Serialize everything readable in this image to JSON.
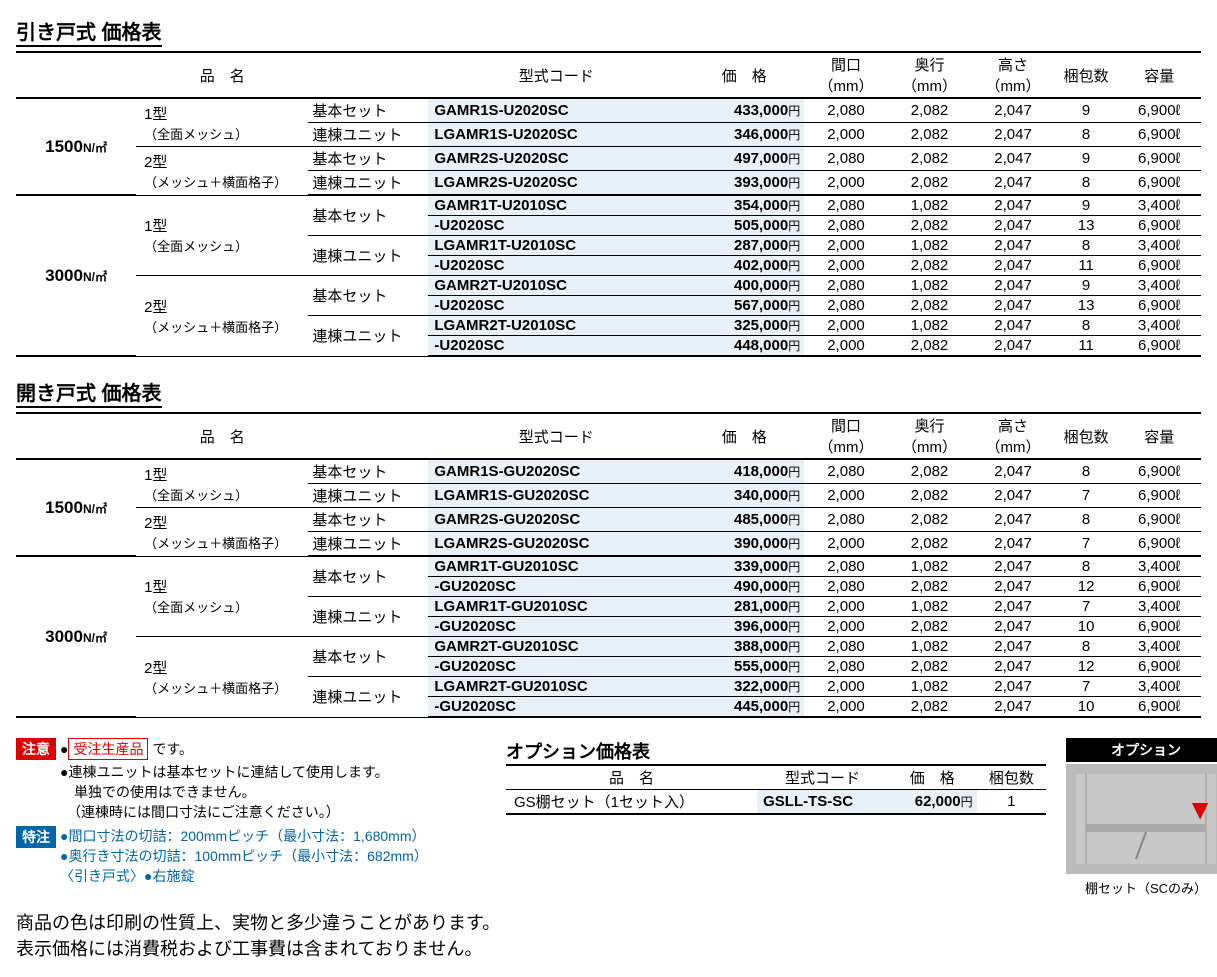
{
  "tables": [
    {
      "title": "引き戸式 価格表",
      "headers": [
        "品　名",
        "型式コード",
        "価　格",
        "間口（mm）",
        "奥行（mm）",
        "高さ（mm）",
        "梱包数",
        "容量"
      ],
      "rows": [
        {
          "load": "1500",
          "load_unit": "N/㎡",
          "type": "1型",
          "type_sub": "（全面メッシュ）",
          "set": "基本セット",
          "model": "GAMR1S-U2020SC",
          "price": "433,000",
          "w": "2,080",
          "d": "2,082",
          "h": "2,047",
          "pkg": "9",
          "cap": "6,900ℓ",
          "sep": "top"
        },
        {
          "set": "連棟ユニット",
          "model": "LGAMR1S-U2020SC",
          "price": "346,000",
          "w": "2,000",
          "d": "2,082",
          "h": "2,047",
          "pkg": "8",
          "cap": "6,900ℓ"
        },
        {
          "type": "2型",
          "type_sub": "（メッシュ＋横面格子）",
          "set": "基本セット",
          "model": "GAMR2S-U2020SC",
          "price": "497,000",
          "w": "2,080",
          "d": "2,082",
          "h": "2,047",
          "pkg": "9",
          "cap": "6,900ℓ"
        },
        {
          "set": "連棟ユニット",
          "model": "LGAMR2S-U2020SC",
          "price": "393,000",
          "w": "2,000",
          "d": "2,082",
          "h": "2,047",
          "pkg": "8",
          "cap": "6,900ℓ",
          "sep": "bottom"
        },
        {
          "load": "3000",
          "load_unit": "N/㎡",
          "type": "1型",
          "type_sub": "（全面メッシュ）",
          "set": "基本セット",
          "model": "GAMR1T-U2010SC",
          "price": "354,000",
          "w": "2,080",
          "d": "1,082",
          "h": "2,047",
          "pkg": "9",
          "cap": "3,400ℓ"
        },
        {
          "model": "-U2020SC",
          "price": "505,000",
          "w": "2,080",
          "d": "2,082",
          "h": "2,047",
          "pkg": "13",
          "cap": "6,900ℓ"
        },
        {
          "set": "連棟ユニット",
          "model": "LGAMR1T-U2010SC",
          "price": "287,000",
          "w": "2,000",
          "d": "1,082",
          "h": "2,047",
          "pkg": "8",
          "cap": "3,400ℓ"
        },
        {
          "model": "-U2020SC",
          "price": "402,000",
          "w": "2,000",
          "d": "2,082",
          "h": "2,047",
          "pkg": "11",
          "cap": "6,900ℓ"
        },
        {
          "type": "2型",
          "type_sub": "（メッシュ＋横面格子）",
          "set": "基本セット",
          "model": "GAMR2T-U2010SC",
          "price": "400,000",
          "w": "2,080",
          "d": "1,082",
          "h": "2,047",
          "pkg": "9",
          "cap": "3,400ℓ"
        },
        {
          "model": "-U2020SC",
          "price": "567,000",
          "w": "2,080",
          "d": "2,082",
          "h": "2,047",
          "pkg": "13",
          "cap": "6,900ℓ"
        },
        {
          "set": "連棟ユニット",
          "model": "LGAMR2T-U2010SC",
          "price": "325,000",
          "w": "2,000",
          "d": "1,082",
          "h": "2,047",
          "pkg": "8",
          "cap": "3,400ℓ"
        },
        {
          "model": "-U2020SC",
          "price": "448,000",
          "w": "2,000",
          "d": "2,082",
          "h": "2,047",
          "pkg": "11",
          "cap": "6,900ℓ",
          "sep": "bottom"
        }
      ]
    },
    {
      "title": "開き戸式 価格表",
      "headers": [
        "品　名",
        "型式コード",
        "価　格",
        "間口（mm）",
        "奥行（mm）",
        "高さ（mm）",
        "梱包数",
        "容量"
      ],
      "rows": [
        {
          "load": "1500",
          "load_unit": "N/㎡",
          "type": "1型",
          "type_sub": "（全面メッシュ）",
          "set": "基本セット",
          "model": "GAMR1S-GU2020SC",
          "price": "418,000",
          "w": "2,080",
          "d": "2,082",
          "h": "2,047",
          "pkg": "8",
          "cap": "6,900ℓ",
          "sep": "top"
        },
        {
          "set": "連棟ユニット",
          "model": "LGAMR1S-GU2020SC",
          "price": "340,000",
          "w": "2,000",
          "d": "2,082",
          "h": "2,047",
          "pkg": "7",
          "cap": "6,900ℓ"
        },
        {
          "type": "2型",
          "type_sub": "（メッシュ＋横面格子）",
          "set": "基本セット",
          "model": "GAMR2S-GU2020SC",
          "price": "485,000",
          "w": "2,080",
          "d": "2,082",
          "h": "2,047",
          "pkg": "8",
          "cap": "6,900ℓ"
        },
        {
          "set": "連棟ユニット",
          "model": "LGAMR2S-GU2020SC",
          "price": "390,000",
          "w": "2,000",
          "d": "2,082",
          "h": "2,047",
          "pkg": "7",
          "cap": "6,900ℓ",
          "sep": "bottom"
        },
        {
          "load": "3000",
          "load_unit": "N/㎡",
          "type": "1型",
          "type_sub": "（全面メッシュ）",
          "set": "基本セット",
          "model": "GAMR1T-GU2010SC",
          "price": "339,000",
          "w": "2,080",
          "d": "1,082",
          "h": "2,047",
          "pkg": "8",
          "cap": "3,400ℓ"
        },
        {
          "model": "-GU2020SC",
          "price": "490,000",
          "w": "2,080",
          "d": "2,082",
          "h": "2,047",
          "pkg": "12",
          "cap": "6,900ℓ"
        },
        {
          "set": "連棟ユニット",
          "model": "LGAMR1T-GU2010SC",
          "price": "281,000",
          "w": "2,000",
          "d": "1,082",
          "h": "2,047",
          "pkg": "7",
          "cap": "3,400ℓ"
        },
        {
          "model": "-GU2020SC",
          "price": "396,000",
          "w": "2,000",
          "d": "2,082",
          "h": "2,047",
          "pkg": "10",
          "cap": "6,900ℓ"
        },
        {
          "type": "2型",
          "type_sub": "（メッシュ＋横面格子）",
          "set": "基本セット",
          "model": "GAMR2T-GU2010SC",
          "price": "388,000",
          "w": "2,080",
          "d": "1,082",
          "h": "2,047",
          "pkg": "8",
          "cap": "3,400ℓ"
        },
        {
          "model": "-GU2020SC",
          "price": "555,000",
          "w": "2,080",
          "d": "2,082",
          "h": "2,047",
          "pkg": "12",
          "cap": "6,900ℓ"
        },
        {
          "set": "連棟ユニット",
          "model": "LGAMR2T-GU2010SC",
          "price": "322,000",
          "w": "2,000",
          "d": "1,082",
          "h": "2,047",
          "pkg": "7",
          "cap": "3,400ℓ"
        },
        {
          "model": "-GU2020SC",
          "price": "445,000",
          "w": "2,000",
          "d": "2,082",
          "h": "2,047",
          "pkg": "10",
          "cap": "6,900ℓ",
          "sep": "bottom"
        }
      ]
    }
  ],
  "notes": {
    "caution_badge": "注意",
    "order_made": "受注生産品",
    "order_suffix": " です。",
    "caution_lines": [
      "●連棟ユニットは基本セットに連結して使用します。",
      "　単独での使用はできません。",
      "　（連棟時には間口寸法にご注意ください。）"
    ],
    "special_badge": "特注",
    "special_lines": [
      "●間口寸法の切詰：200mmピッチ（最小寸法：1,680mm）",
      "●奥行き寸法の切詰：100mmピッチ（最小寸法：682mm）",
      "〈引き戸式〉●右施錠"
    ]
  },
  "option": {
    "title": "オプション価格表",
    "headers": [
      "品　名",
      "型式コード",
      "価　格",
      "梱包数"
    ],
    "row": {
      "name": "GS棚セット（1セット入）",
      "model": "GSLL-TS-SC",
      "price": "62,000",
      "pkg": "1"
    },
    "img_header": "オプション",
    "img_caption": "棚セット（SCのみ）"
  },
  "footer": [
    "商品の色は印刷の性質上、実物と多少違うことがあります。",
    "表示価格には消費税および工事費は含まれておりません。"
  ]
}
